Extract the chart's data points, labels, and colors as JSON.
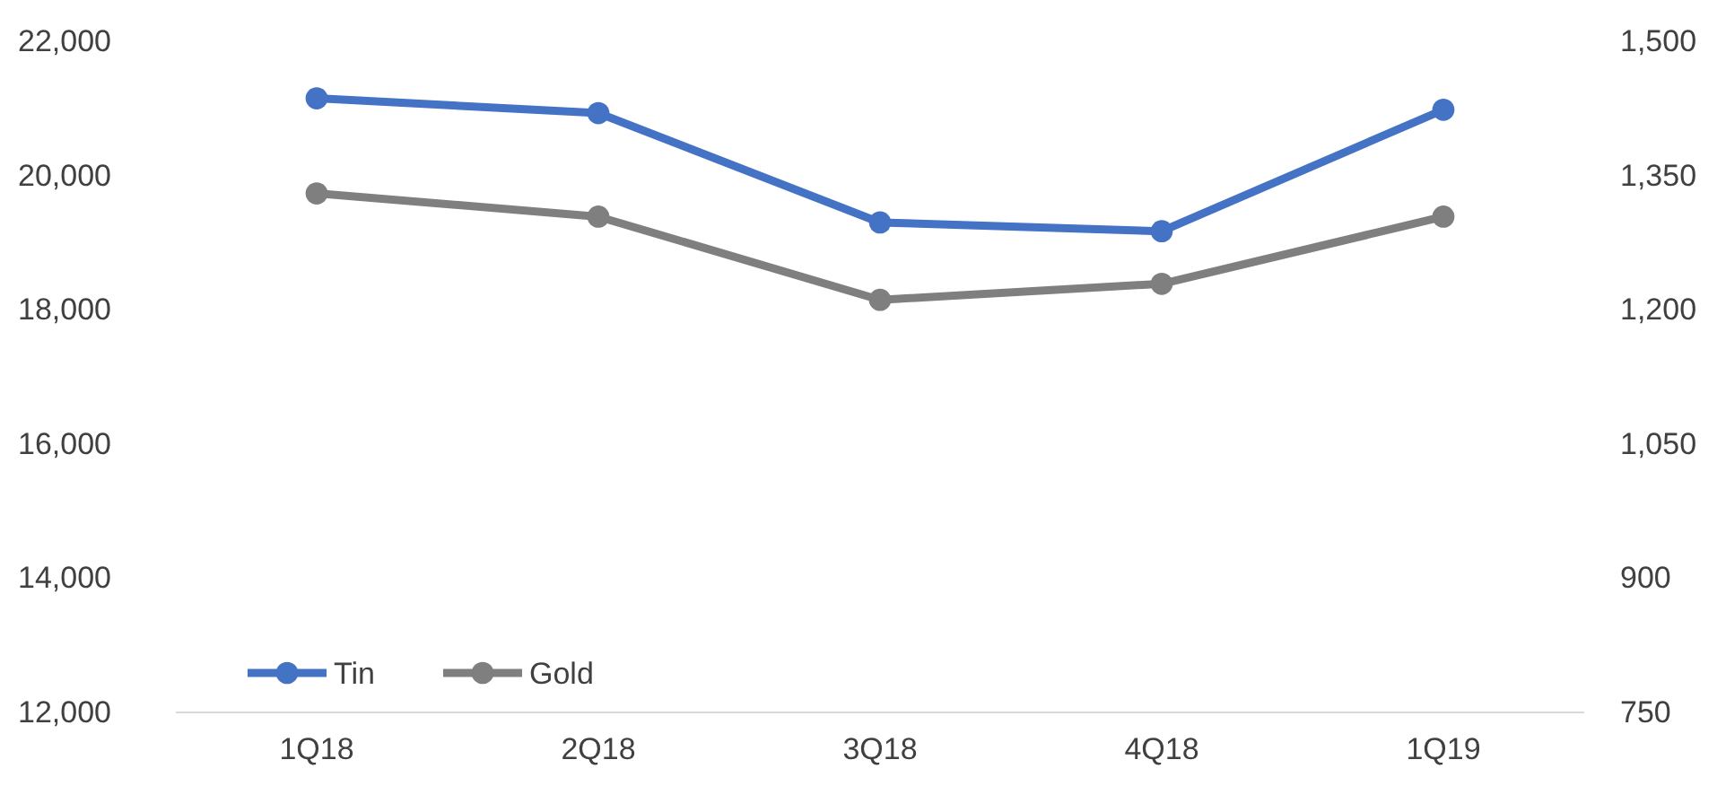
{
  "chart_data": {
    "type": "line",
    "categories": [
      "1Q18",
      "2Q18",
      "3Q18",
      "4Q18",
      "1Q19"
    ],
    "series": [
      {
        "name": "Tin",
        "color": "#4472c4",
        "values": [
          21150,
          20930,
          19300,
          19170,
          20980
        ]
      },
      {
        "name": "Gold",
        "color": "#7f7f7f",
        "axis": "y2",
        "values": [
          1330,
          1304,
          1211,
          1229,
          1304
        ]
      }
    ],
    "ylim": [
      12000,
      22000
    ],
    "yticks": [
      {
        "value": 12000,
        "label": "12,000"
      },
      {
        "value": 14000,
        "label": "14,000"
      },
      {
        "value": 16000,
        "label": "16,000"
      },
      {
        "value": 18000,
        "label": "18,000"
      },
      {
        "value": 20000,
        "label": "20,000"
      },
      {
        "value": 22000,
        "label": "22,000"
      }
    ],
    "y2lim": [
      750,
      1500
    ],
    "y2ticks": [
      750,
      900,
      {
        "value": 1050,
        "label": "1,050"
      },
      {
        "value": 1200,
        "label": "1,200"
      },
      {
        "value": 1350,
        "label": "1,350"
      },
      {
        "value": 1500,
        "label": "1,500"
      }
    ],
    "marker": "circle",
    "line_style": "solid",
    "grid": false,
    "legend": "bottom left"
  }
}
